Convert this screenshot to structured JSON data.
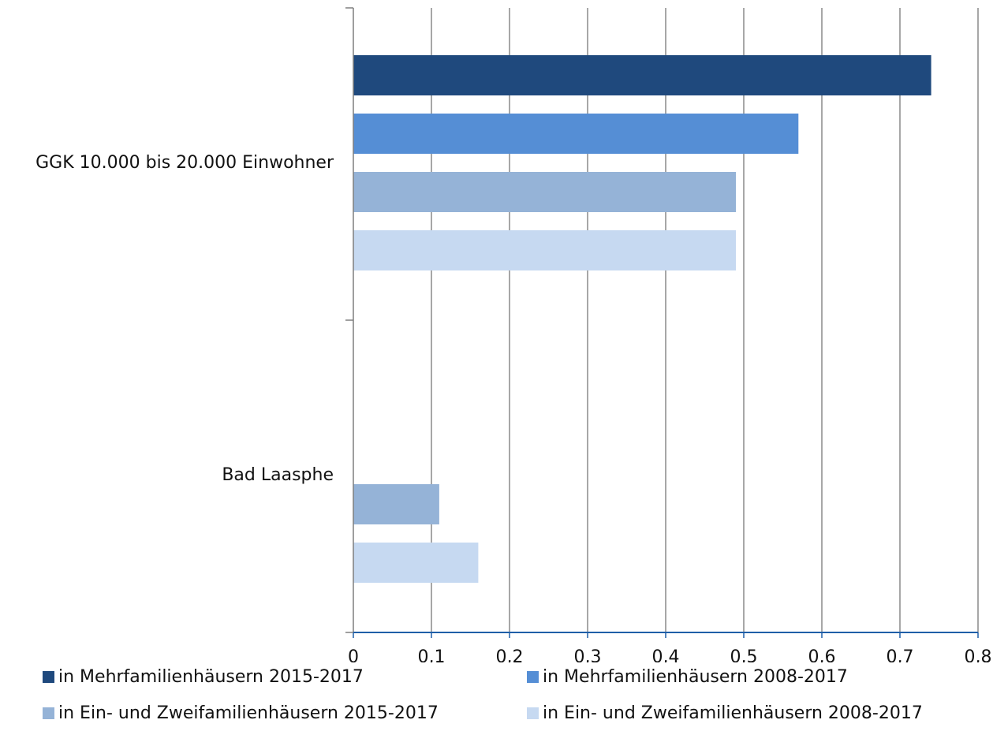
{
  "chart_data": {
    "type": "bar",
    "orientation": "horizontal",
    "title": "",
    "xlabel": "",
    "ylabel": "",
    "xlim": [
      0,
      0.8
    ],
    "x_ticks": [
      "0",
      "0,1",
      "0,2",
      "0,3",
      "0,4",
      "0,5",
      "0,6",
      "0,7",
      "0,8"
    ],
    "categories": [
      "GGK 10.000 bis 20.000 Einwohner",
      "Bad Laasphe"
    ],
    "series": [
      {
        "name": "in Mehrfamilienhäusern 2015-2017",
        "color": "#1f497d",
        "values": [
          0.74,
          0
        ]
      },
      {
        "name": "in Mehrfamilienhäusern 2008-2017",
        "color": "#558ed5",
        "values": [
          0.57,
          0
        ]
      },
      {
        "name": "in Ein- und Zweifamilienhäusern 2015-2017",
        "color": "#95b3d7",
        "values": [
          0.49,
          0.11
        ]
      },
      {
        "name": "in Ein- und Zweifamilienhäusern 2008-2017",
        "color": "#c6d9f1",
        "values": [
          0.49,
          0.16
        ]
      }
    ],
    "grid": true,
    "legend_position": "bottom"
  }
}
